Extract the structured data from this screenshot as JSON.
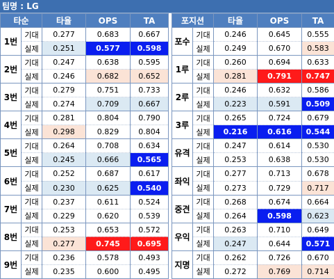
{
  "title": "팀명 : LG",
  "headers": {
    "left": [
      "타순",
      "타율",
      "OPS",
      "TA"
    ],
    "right": [
      "포지션",
      "타율",
      "OPS",
      "TA"
    ]
  },
  "kinds": [
    "기대",
    "실제"
  ],
  "left_rows": [
    {
      "label": "1번",
      "expected": [
        {
          "v": "0.277",
          "h": ""
        },
        {
          "v": "0.683",
          "h": ""
        },
        {
          "v": "0.667",
          "h": ""
        }
      ],
      "actual": [
        {
          "v": "0.251",
          "h": "lb"
        },
        {
          "v": "0.577",
          "h": "bl"
        },
        {
          "v": "0.598",
          "h": "bl"
        }
      ]
    },
    {
      "label": "2번",
      "expected": [
        {
          "v": "0.247",
          "h": ""
        },
        {
          "v": "0.638",
          "h": ""
        },
        {
          "v": "0.595",
          "h": ""
        }
      ],
      "actual": [
        {
          "v": "0.246",
          "h": ""
        },
        {
          "v": "0.682",
          "h": "pk"
        },
        {
          "v": "0.652",
          "h": "pk"
        }
      ]
    },
    {
      "label": "3번",
      "expected": [
        {
          "v": "0.279",
          "h": ""
        },
        {
          "v": "0.751",
          "h": ""
        },
        {
          "v": "0.733",
          "h": ""
        }
      ],
      "actual": [
        {
          "v": "0.274",
          "h": ""
        },
        {
          "v": "0.709",
          "h": "lb"
        },
        {
          "v": "0.667",
          "h": "lb"
        }
      ]
    },
    {
      "label": "4번",
      "expected": [
        {
          "v": "0.281",
          "h": ""
        },
        {
          "v": "0.804",
          "h": ""
        },
        {
          "v": "0.790",
          "h": ""
        }
      ],
      "actual": [
        {
          "v": "0.298",
          "h": "pk"
        },
        {
          "v": "0.829",
          "h": ""
        },
        {
          "v": "0.804",
          "h": ""
        }
      ]
    },
    {
      "label": "5번",
      "expected": [
        {
          "v": "0.264",
          "h": ""
        },
        {
          "v": "0.708",
          "h": ""
        },
        {
          "v": "0.634",
          "h": ""
        }
      ],
      "actual": [
        {
          "v": "0.245",
          "h": "lb"
        },
        {
          "v": "0.666",
          "h": "lb"
        },
        {
          "v": "0.565",
          "h": "bl"
        }
      ]
    },
    {
      "label": "6번",
      "expected": [
        {
          "v": "0.252",
          "h": ""
        },
        {
          "v": "0.687",
          "h": ""
        },
        {
          "v": "0.617",
          "h": ""
        }
      ],
      "actual": [
        {
          "v": "0.230",
          "h": "lb"
        },
        {
          "v": "0.625",
          "h": "lb"
        },
        {
          "v": "0.540",
          "h": "bl"
        }
      ]
    },
    {
      "label": "7번",
      "expected": [
        {
          "v": "0.237",
          "h": ""
        },
        {
          "v": "0.611",
          "h": ""
        },
        {
          "v": "0.524",
          "h": ""
        }
      ],
      "actual": [
        {
          "v": "0.229",
          "h": ""
        },
        {
          "v": "0.620",
          "h": ""
        },
        {
          "v": "0.539",
          "h": ""
        }
      ]
    },
    {
      "label": "8번",
      "expected": [
        {
          "v": "0.253",
          "h": ""
        },
        {
          "v": "0.653",
          "h": ""
        },
        {
          "v": "0.572",
          "h": ""
        }
      ],
      "actual": [
        {
          "v": "0.277",
          "h": "pk"
        },
        {
          "v": "0.745",
          "h": "rd"
        },
        {
          "v": "0.695",
          "h": "rd"
        }
      ]
    },
    {
      "label": "9번",
      "expected": [
        {
          "v": "0.236",
          "h": ""
        },
        {
          "v": "0.578",
          "h": ""
        },
        {
          "v": "0.493",
          "h": ""
        }
      ],
      "actual": [
        {
          "v": "0.235",
          "h": ""
        },
        {
          "v": "0.600",
          "h": ""
        },
        {
          "v": "0.495",
          "h": ""
        }
      ]
    }
  ],
  "right_rows": [
    {
      "label": "포수",
      "expected": [
        {
          "v": "0.246",
          "h": ""
        },
        {
          "v": "0.645",
          "h": ""
        },
        {
          "v": "0.555",
          "h": ""
        }
      ],
      "actual": [
        {
          "v": "0.249",
          "h": ""
        },
        {
          "v": "0.670",
          "h": ""
        },
        {
          "v": "0.583",
          "h": "pk"
        }
      ]
    },
    {
      "label": "1루",
      "expected": [
        {
          "v": "0.260",
          "h": ""
        },
        {
          "v": "0.694",
          "h": ""
        },
        {
          "v": "0.633",
          "h": ""
        }
      ],
      "actual": [
        {
          "v": "0.281",
          "h": "pk"
        },
        {
          "v": "0.791",
          "h": "rd"
        },
        {
          "v": "0.747",
          "h": "rd"
        }
      ]
    },
    {
      "label": "2루",
      "expected": [
        {
          "v": "0.246",
          "h": ""
        },
        {
          "v": "0.632",
          "h": ""
        },
        {
          "v": "0.586",
          "h": ""
        }
      ],
      "actual": [
        {
          "v": "0.223",
          "h": "lb"
        },
        {
          "v": "0.591",
          "h": "lb"
        },
        {
          "v": "0.509",
          "h": "bl"
        }
      ]
    },
    {
      "label": "3루",
      "expected": [
        {
          "v": "0.265",
          "h": ""
        },
        {
          "v": "0.724",
          "h": ""
        },
        {
          "v": "0.679",
          "h": ""
        }
      ],
      "actual": [
        {
          "v": "0.216",
          "h": "bl"
        },
        {
          "v": "0.616",
          "h": "bl"
        },
        {
          "v": "0.544",
          "h": "bl"
        }
      ]
    },
    {
      "label": "유격",
      "expected": [
        {
          "v": "0.247",
          "h": ""
        },
        {
          "v": "0.614",
          "h": ""
        },
        {
          "v": "0.530",
          "h": ""
        }
      ],
      "actual": [
        {
          "v": "0.253",
          "h": ""
        },
        {
          "v": "0.638",
          "h": ""
        },
        {
          "v": "0.530",
          "h": ""
        }
      ]
    },
    {
      "label": "좌익",
      "expected": [
        {
          "v": "0.277",
          "h": ""
        },
        {
          "v": "0.713",
          "h": ""
        },
        {
          "v": "0.678",
          "h": ""
        }
      ],
      "actual": [
        {
          "v": "0.273",
          "h": ""
        },
        {
          "v": "0.729",
          "h": ""
        },
        {
          "v": "0.717",
          "h": "pk"
        }
      ]
    },
    {
      "label": "중견",
      "expected": [
        {
          "v": "0.268",
          "h": ""
        },
        {
          "v": "0.674",
          "h": ""
        },
        {
          "v": "0.664",
          "h": ""
        }
      ],
      "actual": [
        {
          "v": "0.264",
          "h": ""
        },
        {
          "v": "0.598",
          "h": "bl"
        },
        {
          "v": "0.623",
          "h": "lb"
        }
      ]
    },
    {
      "label": "우익",
      "expected": [
        {
          "v": "0.263",
          "h": ""
        },
        {
          "v": "0.710",
          "h": ""
        },
        {
          "v": "0.649",
          "h": ""
        }
      ],
      "actual": [
        {
          "v": "0.247",
          "h": "lb"
        },
        {
          "v": "0.644",
          "h": ""
        },
        {
          "v": "0.571",
          "h": "bl"
        }
      ]
    },
    {
      "label": "지명",
      "expected": [
        {
          "v": "0.262",
          "h": ""
        },
        {
          "v": "0.726",
          "h": ""
        },
        {
          "v": "0.670",
          "h": ""
        }
      ],
      "actual": [
        {
          "v": "0.272",
          "h": ""
        },
        {
          "v": "0.769",
          "h": "pk"
        },
        {
          "v": "0.714",
          "h": "pk"
        }
      ]
    }
  ]
}
